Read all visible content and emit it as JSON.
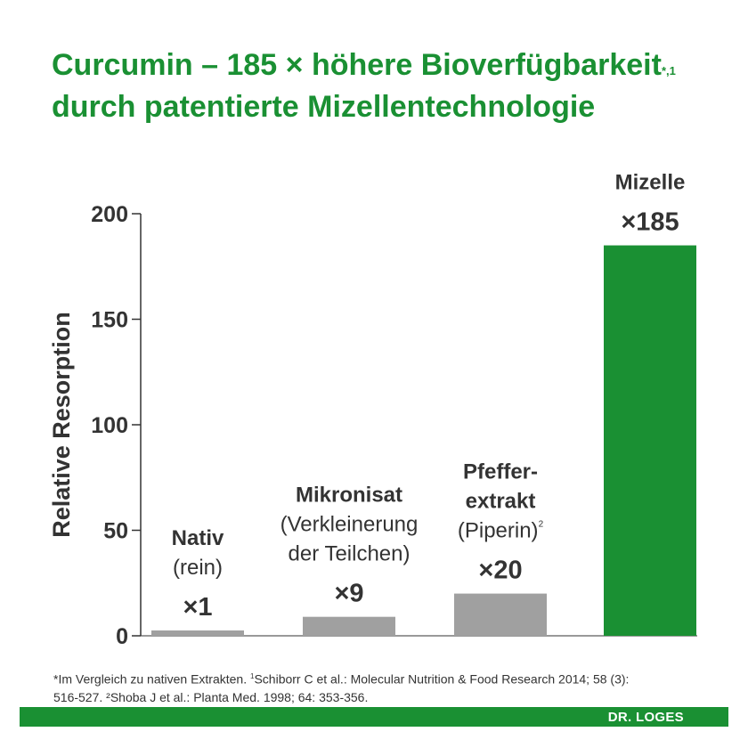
{
  "title": {
    "line1": "Curcumin – 185 × höhere Bioverfügbarkeit",
    "line1_sup": "*,1",
    "line2": "durch patentierte Mizellentechnologie"
  },
  "colors": {
    "accent": "#1a9033",
    "bar_grey": "#a0a0a0",
    "text": "#333333"
  },
  "chart_data": {
    "type": "bar",
    "ylabel": "Relative Resorption",
    "ylim": [
      0,
      200
    ],
    "yticks": [
      0,
      50,
      100,
      150,
      200
    ],
    "grid": false,
    "categories": [
      {
        "name": "Nativ",
        "sub": [
          "(rein)"
        ],
        "sup": "",
        "value": 1,
        "label": "×1",
        "color": "#a0a0a0"
      },
      {
        "name": "Mikronisat",
        "sub": [
          "(Verkleinerung",
          "der Teilchen)"
        ],
        "sup": "",
        "value": 9,
        "label": "×9",
        "color": "#a0a0a0"
      },
      {
        "name": "Pfeffer-\nextrakt",
        "sub": [
          "(Piperin)"
        ],
        "sup": "2",
        "value": 20,
        "label": "×20",
        "color": "#a0a0a0"
      },
      {
        "name": "Mizelle",
        "sub": [],
        "sup": "",
        "value": 185,
        "label": "×185",
        "color": "#1a9033"
      }
    ]
  },
  "footnote": {
    "line1_a": "*Im Vergleich zu nativen Extrakten. ",
    "line1_sup": "1",
    "line1_b": "Schiborr C et al.: Molecular Nutrition & Food Research 2014; 58 (3):",
    "line2": "516-527. ²Shoba J et al.: Planta Med. 1998; 64: 353-356."
  },
  "brand": "DR. LOGES"
}
